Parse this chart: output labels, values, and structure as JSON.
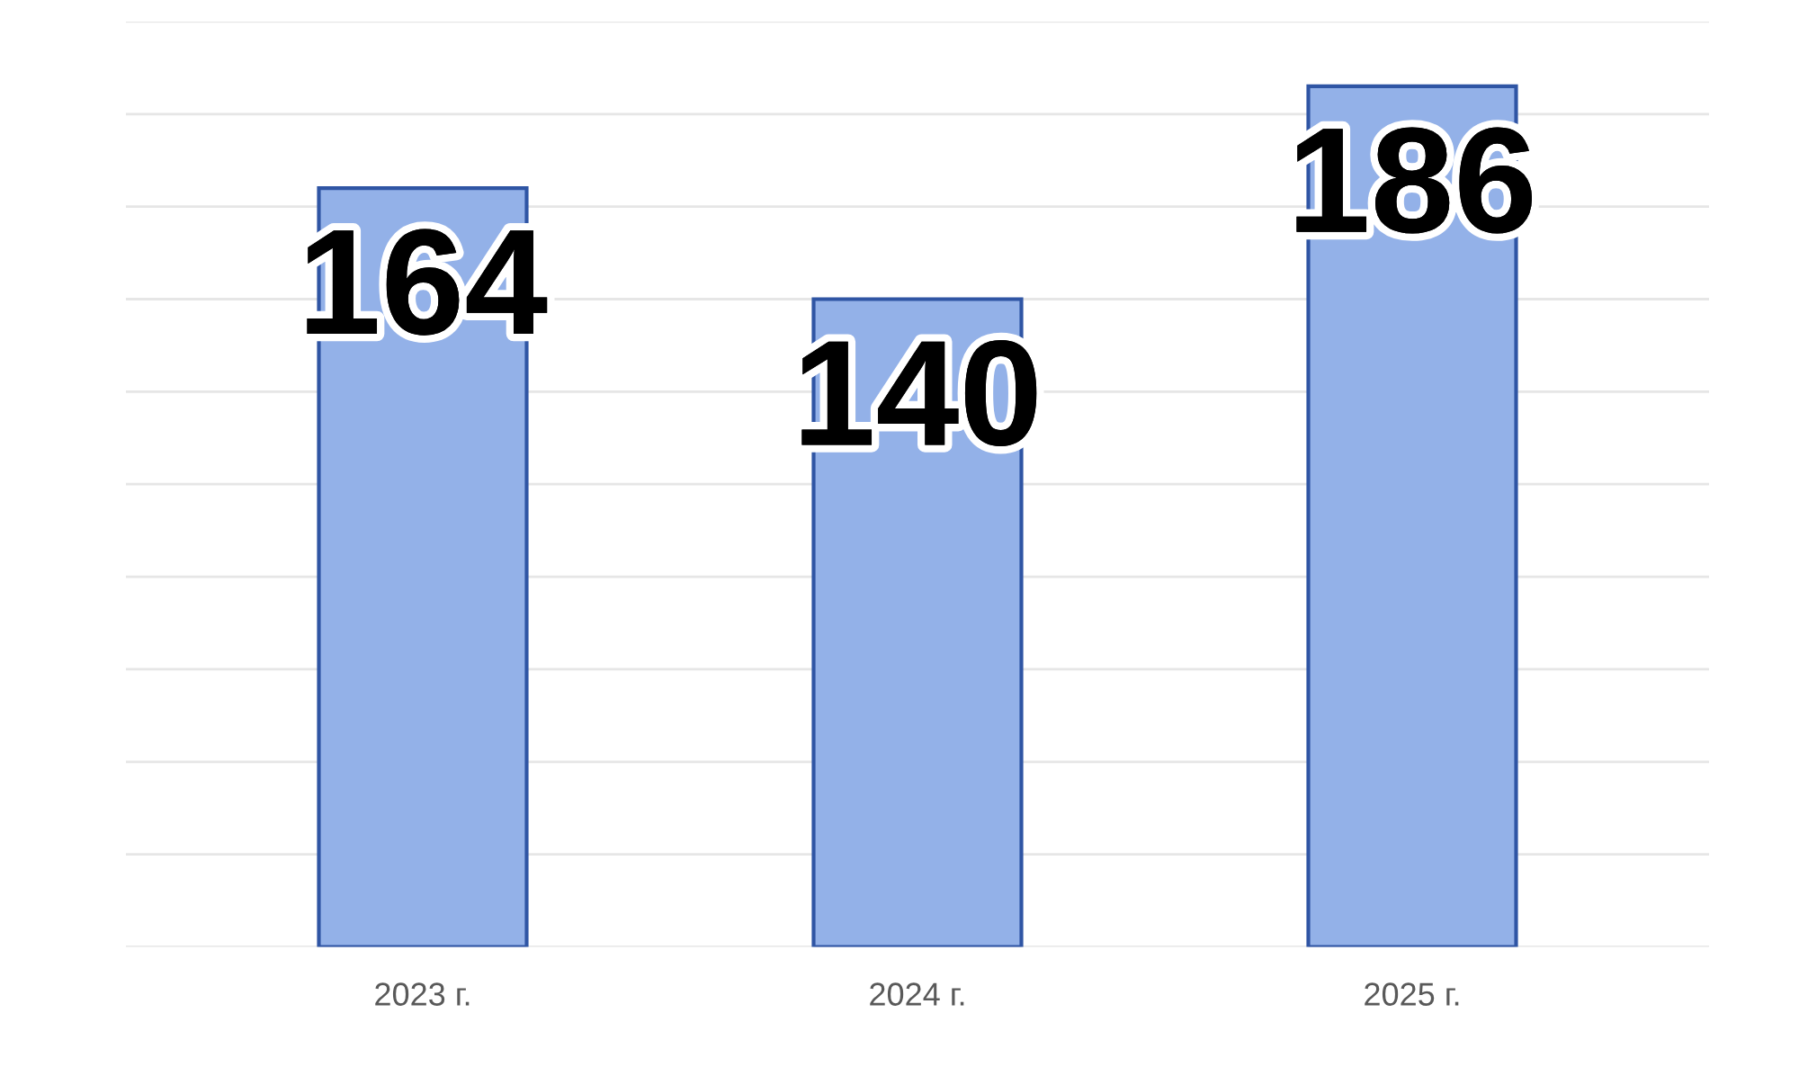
{
  "chart_data": {
    "type": "bar",
    "categories": [
      "2023 г.",
      "2024 г.",
      "2025 г."
    ],
    "values": [
      164,
      140,
      186
    ],
    "color": "#93b1e8",
    "ylim": [
      0,
      200
    ],
    "yticks": [
      {
        "value": 0,
        "label": null
      },
      {
        "value": 20,
        "label": null
      },
      {
        "value": 40,
        "label": null
      },
      {
        "value": 60,
        "label": null
      },
      {
        "value": 80,
        "label": null
      },
      {
        "value": 100,
        "label": null
      },
      {
        "value": 120,
        "label": null
      },
      {
        "value": 140,
        "label": null
      },
      {
        "value": 160,
        "label": null
      },
      {
        "value": 180,
        "label": null
      },
      {
        "value": 200,
        "label": null
      }
    ],
    "tick_labels": "x",
    "grid": "y",
    "data_labels": true
  }
}
